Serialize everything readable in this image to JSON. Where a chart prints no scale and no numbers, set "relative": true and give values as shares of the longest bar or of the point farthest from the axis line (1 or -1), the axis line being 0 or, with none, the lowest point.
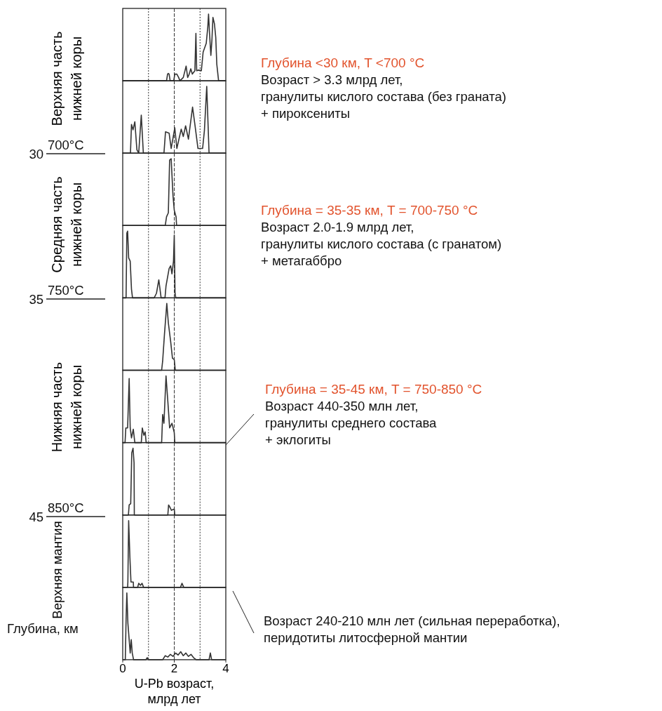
{
  "chart_data": [
    {
      "type": "line",
      "relative": true,
      "color": "#333333",
      "xlim": [
        0,
        4
      ],
      "tick_labels": false,
      "ref_lines": [
        {
          "axis": "x",
          "value": 1,
          "line_style": "dotted"
        },
        {
          "axis": "x",
          "value": 2,
          "line_style": "dashed"
        },
        {
          "axis": "x",
          "value": 3,
          "line_style": "dotted"
        }
      ],
      "x": [
        0,
        1.7,
        1.74,
        1.77,
        1.8,
        1.84,
        1.98,
        2.02,
        2.1,
        2.17,
        2.22,
        2.35,
        2.46,
        2.52,
        2.58,
        2.64,
        2.7,
        2.8,
        2.84,
        2.87,
        2.95,
        3.05,
        3.12,
        3.24,
        3.3,
        3.33,
        3.37,
        3.42,
        3.46,
        3.5,
        3.56,
        3.61,
        3.65,
        3.72,
        4
      ],
      "values": [
        0,
        0,
        0.1,
        0.11,
        0.1,
        0,
        0,
        0.1,
        0.1,
        0.05,
        0,
        0.05,
        0.22,
        0.05,
        0.1,
        0.18,
        0.1,
        0.15,
        0.71,
        0.15,
        0.16,
        0.15,
        0.43,
        0.56,
        0.8,
        1,
        0.7,
        0.38,
        0.6,
        0.95,
        0.85,
        0.65,
        0.25,
        0,
        0
      ],
      "annotations": [
        "Верхняя часть",
        "нижней коры",
        "30",
        "700°C",
        "Средняя часть",
        "нижней коры",
        "35",
        "750°C",
        "Нижняя часть",
        "нижней коры",
        "45",
        "850°C",
        "Верхняя мантия",
        "Глубина, км",
        "Глубина <30 км, T <700 °C",
        "Возраст > 3.3 млрд лет,",
        "гранулиты кислого состава (без граната)",
        "+ пироксениты",
        "Глубина = 35-35 км, T = 700-750 °C",
        "Возраст 2.0-1.9 млрд лет,",
        "гранулиты кислого состава (с гранатом)",
        "+ метагаббро",
        "Глубина = 35-45 км, T = 750-850 °C",
        "Возраст 440-350 млн лет,",
        "гранулиты среднего состава",
        "+ эклогиты",
        "Возраст 240-210 млн лет (сильная переработка),",
        "перидотиты литосферной мантии"
      ]
    },
    {
      "type": "line",
      "relative": true,
      "color": "#333333",
      "xlim": [
        0,
        4
      ],
      "tick_labels": false,
      "ref_lines": [
        {
          "axis": "x",
          "value": 1,
          "line_style": "dotted"
        },
        {
          "axis": "x",
          "value": 2,
          "line_style": "dashed"
        },
        {
          "axis": "x",
          "value": 3,
          "line_style": "dotted"
        }
      ],
      "x": [
        0,
        0.3,
        0.34,
        0.4,
        0.47,
        0.55,
        0.62,
        0.72,
        0.8,
        1.6,
        1.66,
        1.8,
        1.88,
        2.02,
        2.1,
        2.27,
        2.35,
        2.44,
        2.55,
        2.71,
        2.81,
        2.92,
        3.1,
        3.17,
        3.26,
        3.35,
        4
      ],
      "values": [
        0,
        0,
        0.43,
        0.35,
        0.47,
        0.05,
        0,
        0.57,
        0,
        0,
        0.32,
        0.3,
        0.07,
        0.38,
        0.07,
        0.36,
        0.25,
        0.41,
        0.21,
        0.69,
        0.4,
        0.07,
        0.07,
        0.34,
        1,
        0,
        0
      ]
    },
    {
      "type": "line",
      "relative": true,
      "color": "#333333",
      "xlim": [
        0,
        4
      ],
      "tick_labels": false,
      "ref_lines": [
        {
          "axis": "x",
          "value": 1,
          "line_style": "dotted"
        },
        {
          "axis": "x",
          "value": 2,
          "line_style": "dashed"
        },
        {
          "axis": "x",
          "value": 3,
          "line_style": "dotted"
        }
      ],
      "x": [
        0,
        1.65,
        1.7,
        1.77,
        1.82,
        1.88,
        1.95,
        2.0,
        2.07,
        2.09,
        4
      ],
      "values": [
        0,
        0,
        0.13,
        0.19,
        0.98,
        1,
        0.45,
        0.23,
        0.13,
        0,
        0
      ]
    },
    {
      "type": "line",
      "relative": true,
      "color": "#333333",
      "xlim": [
        0,
        4
      ],
      "tick_labels": false,
      "ref_lines": [
        {
          "axis": "x",
          "value": 1,
          "line_style": "dotted"
        },
        {
          "axis": "x",
          "value": 2,
          "line_style": "dashed"
        },
        {
          "axis": "x",
          "value": 3,
          "line_style": "dotted"
        }
      ],
      "x": [
        0,
        0.13,
        0.16,
        0.19,
        0.23,
        0.29,
        0.34,
        0.38,
        1.22,
        1.31,
        1.4,
        1.49,
        1.64,
        1.68,
        1.8,
        1.86,
        1.91,
        1.97,
        2.0,
        2.03,
        2.06,
        4
      ],
      "values": [
        0,
        0,
        0.97,
        1,
        0.6,
        0.55,
        0.13,
        0,
        0,
        0.07,
        0.27,
        0,
        0,
        0.18,
        0.44,
        0.48,
        0.36,
        0.55,
        0.94,
        0.07,
        0,
        0
      ]
    },
    {
      "type": "line",
      "relative": true,
      "color": "#333333",
      "xlim": [
        0,
        4
      ],
      "tick_labels": false,
      "ref_lines": [
        {
          "axis": "x",
          "value": 1,
          "line_style": "dotted"
        },
        {
          "axis": "x",
          "value": 2,
          "line_style": "dashed"
        },
        {
          "axis": "x",
          "value": 3,
          "line_style": "dotted"
        }
      ],
      "x": [
        0,
        1.51,
        1.55,
        1.62,
        1.71,
        1.77,
        1.86,
        1.93,
        2.0,
        2.04,
        4
      ],
      "values": [
        0,
        0,
        0.14,
        0.54,
        1,
        0.71,
        0.43,
        0.18,
        0.16,
        0,
        0
      ]
    },
    {
      "type": "line",
      "relative": true,
      "color": "#333333",
      "xlim": [
        0,
        4
      ],
      "tick_labels": false,
      "ref_lines": [
        {
          "axis": "x",
          "value": 1,
          "line_style": "dotted"
        },
        {
          "axis": "x",
          "value": 2,
          "line_style": "dashed"
        },
        {
          "axis": "x",
          "value": 3,
          "line_style": "dotted"
        }
      ],
      "x": [
        0,
        0.09,
        0.12,
        0.19,
        0.25,
        0.29,
        0.34,
        0.41,
        0.47,
        0.72,
        0.76,
        0.82,
        0.87,
        0.91,
        1.51,
        1.55,
        1.6,
        1.68,
        1.75,
        1.82,
        1.91,
        2.0,
        2.02,
        4
      ],
      "values": [
        0,
        0,
        0.22,
        0.22,
        0.96,
        0.22,
        0.07,
        0.2,
        0,
        0,
        0.22,
        0.11,
        0.16,
        0,
        0,
        0.42,
        0.29,
        1,
        0.62,
        0.22,
        0.29,
        0.15,
        0,
        0
      ]
    },
    {
      "type": "line",
      "relative": true,
      "color": "#333333",
      "xlim": [
        0,
        4
      ],
      "tick_labels": false,
      "ref_lines": [
        {
          "axis": "x",
          "value": 1,
          "line_style": "dotted"
        },
        {
          "axis": "x",
          "value": 2,
          "line_style": "dashed"
        },
        {
          "axis": "x",
          "value": 3,
          "line_style": "dotted"
        }
      ],
      "x": [
        0,
        0.22,
        0.25,
        0.31,
        0.35,
        0.4,
        0.44,
        0.45,
        1.75,
        1.78,
        1.84,
        1.89,
        2.0,
        2.02,
        4
      ],
      "values": [
        0,
        0,
        0.15,
        0.17,
        0.93,
        1,
        0.78,
        0,
        0,
        0.15,
        0.11,
        0.07,
        0.09,
        0,
        0
      ]
    },
    {
      "type": "line",
      "relative": true,
      "color": "#333333",
      "xlim": [
        0,
        4
      ],
      "tick_labels": false,
      "ref_lines": [
        {
          "axis": "x",
          "value": 1,
          "line_style": "dotted"
        },
        {
          "axis": "x",
          "value": 2,
          "line_style": "dashed"
        },
        {
          "axis": "x",
          "value": 3,
          "line_style": "dotted"
        }
      ],
      "x": [
        0,
        0.19,
        0.2,
        0.23,
        0.28,
        0.32,
        0.41,
        0.42,
        0.58,
        0.62,
        0.69,
        0.75,
        0.81,
        2.24,
        2.3,
        2.37,
        4
      ],
      "values": [
        0,
        0,
        0.08,
        1,
        0.44,
        0.08,
        0.08,
        0,
        0,
        0.06,
        0.03,
        0.06,
        0,
        0,
        0.06,
        0,
        0
      ]
    },
    {
      "type": "line",
      "relative": true,
      "color": "#333333",
      "xlim": [
        0,
        4
      ],
      "xticks": [
        0,
        2,
        4
      ],
      "tick_labels": "x",
      "xlabel": "U-Pb возраст, млрд лет",
      "ref_lines": [
        {
          "axis": "x",
          "value": 1,
          "line_style": "dotted"
        },
        {
          "axis": "x",
          "value": 2,
          "line_style": "dashed"
        },
        {
          "axis": "x",
          "value": 3,
          "line_style": "dotted"
        }
      ],
      "x": [
        0,
        0.1,
        0.13,
        0.16,
        0.2,
        0.25,
        0.29,
        0.33,
        0.37,
        0.42,
        0.9,
        0.95,
        1.0,
        1.55,
        1.65,
        1.75,
        1.85,
        1.95,
        2.05,
        2.15,
        2.25,
        2.35,
        2.45,
        2.55,
        2.65,
        2.75,
        2.85,
        3.35,
        3.4,
        3.45,
        4
      ],
      "values": [
        0,
        0,
        0.6,
        1,
        0.55,
        0.3,
        0.1,
        0.3,
        0.1,
        0,
        0,
        0.03,
        0,
        0,
        0.06,
        0.04,
        0.08,
        0.05,
        0.1,
        0.07,
        0.12,
        0.06,
        0.1,
        0.05,
        0.08,
        0.03,
        0,
        0,
        0.1,
        0,
        0
      ]
    }
  ]
}
